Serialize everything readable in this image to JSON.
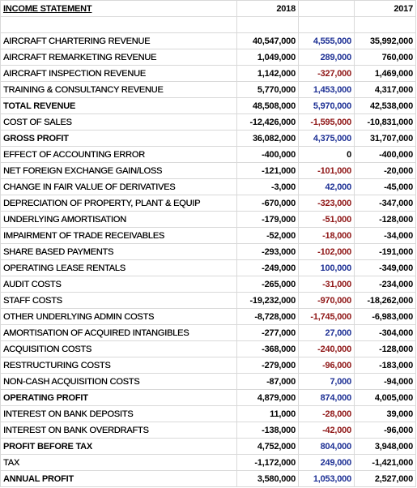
{
  "header": {
    "title": "INCOME STATEMENT",
    "columns": [
      "2018",
      "2017"
    ]
  },
  "colors": {
    "positive": "#1c2f94",
    "negative": "#8e1414",
    "zero": "#000000"
  },
  "rows": [
    {
      "label": "AIRCRAFT CHARTERING REVENUE",
      "values": [
        "40,547,000",
        "4,555,000",
        "35,992,000"
      ],
      "bold": false
    },
    {
      "label": "AIRCRAFT REMARKETING REVENUE",
      "values": [
        "1,049,000",
        "289,000",
        "760,000"
      ],
      "bold": false
    },
    {
      "label": "AIRCRAFT INSPECTION REVENUE",
      "values": [
        "1,142,000",
        "-327,000",
        "1,469,000"
      ],
      "bold": false
    },
    {
      "label": "TRAINING & CONSULTANCY REVENUE",
      "values": [
        "5,770,000",
        "1,453,000",
        "4,317,000"
      ],
      "bold": false
    },
    {
      "label": "TOTAL REVENUE",
      "values": [
        "48,508,000",
        "5,970,000",
        "42,538,000"
      ],
      "bold": true
    },
    {
      "label": "COST OF SALES",
      "values": [
        "-12,426,000",
        "-1,595,000",
        "-10,831,000"
      ],
      "bold": false
    },
    {
      "label": "GROSS PROFIT",
      "values": [
        "36,082,000",
        "4,375,000",
        "31,707,000"
      ],
      "bold": true
    },
    {
      "label": "EFFECT OF ACCOUNTING ERROR",
      "values": [
        "-400,000",
        "0",
        "-400,000"
      ],
      "bold": false
    },
    {
      "label": "NET FOREIGN EXCHANGE GAIN/LOSS",
      "values": [
        "-121,000",
        "-101,000",
        "-20,000"
      ],
      "bold": false
    },
    {
      "label": "CHANGE IN FAIR VALUE OF DERIVATIVES",
      "values": [
        "-3,000",
        "42,000",
        "-45,000"
      ],
      "bold": false
    },
    {
      "label": "DEPRECIATION OF PROPERTY, PLANT & EQUIP",
      "values": [
        "-670,000",
        "-323,000",
        "-347,000"
      ],
      "bold": false
    },
    {
      "label": "UNDERLYING AMORTISATION",
      "values": [
        "-179,000",
        "-51,000",
        "-128,000"
      ],
      "bold": false
    },
    {
      "label": "IMPAIRMENT OF TRADE RECEIVABLES",
      "values": [
        "-52,000",
        "-18,000",
        "-34,000"
      ],
      "bold": false
    },
    {
      "label": "SHARE BASED PAYMENTS",
      "values": [
        "-293,000",
        "-102,000",
        "-191,000"
      ],
      "bold": false
    },
    {
      "label": "OPERATING LEASE RENTALS",
      "values": [
        "-249,000",
        "100,000",
        "-349,000"
      ],
      "bold": false
    },
    {
      "label": "AUDIT COSTS",
      "values": [
        "-265,000",
        "-31,000",
        "-234,000"
      ],
      "bold": false
    },
    {
      "label": "STAFF COSTS",
      "values": [
        "-19,232,000",
        "-970,000",
        "-18,262,000"
      ],
      "bold": false
    },
    {
      "label": "OTHER UNDERLYING ADMIN COSTS",
      "values": [
        "-8,728,000",
        "-1,745,000",
        "-6,983,000"
      ],
      "bold": false
    },
    {
      "label": "AMORTISATION OF ACQUIRED INTANGIBLES",
      "values": [
        "-277,000",
        "27,000",
        "-304,000"
      ],
      "bold": false
    },
    {
      "label": "ACQUISITION COSTS",
      "values": [
        "-368,000",
        "-240,000",
        "-128,000"
      ],
      "bold": false
    },
    {
      "label": "RESTRUCTURING COSTS",
      "values": [
        "-279,000",
        "-96,000",
        "-183,000"
      ],
      "bold": false
    },
    {
      "label": "NON-CASH ACQUISITION COSTS",
      "values": [
        "-87,000",
        "7,000",
        "-94,000"
      ],
      "bold": false
    },
    {
      "label": "OPERATING PROFIT",
      "values": [
        "4,879,000",
        "874,000",
        "4,005,000"
      ],
      "bold": true
    },
    {
      "label": "INTEREST ON BANK DEPOSITS",
      "values": [
        "11,000",
        "-28,000",
        "39,000"
      ],
      "bold": false
    },
    {
      "label": "INTEREST ON BANK OVERDRAFTS",
      "values": [
        "-138,000",
        "-42,000",
        "-96,000"
      ],
      "bold": false
    },
    {
      "label": "PROFIT BEFORE TAX",
      "values": [
        "4,752,000",
        "804,000",
        "3,948,000"
      ],
      "bold": true
    },
    {
      "label": "TAX",
      "values": [
        "-1,172,000",
        "249,000",
        "-1,421,000"
      ],
      "bold": false
    },
    {
      "label": "ANNUAL PROFIT",
      "values": [
        "3,580,000",
        "1,053,000",
        "2,527,000"
      ],
      "bold": true
    }
  ]
}
